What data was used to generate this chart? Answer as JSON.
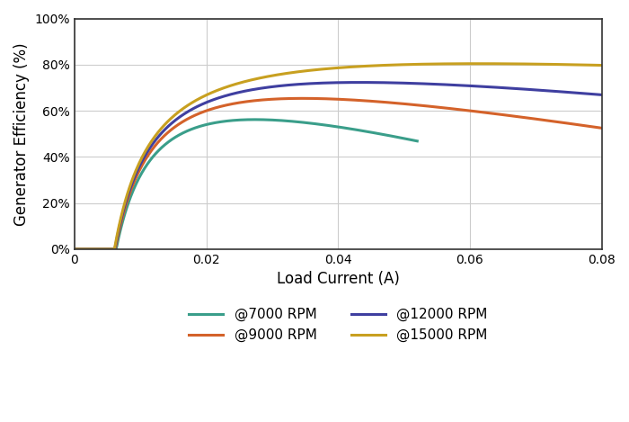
{
  "xlabel": "Load Current (A)",
  "ylabel": "Generator Efficiency (%)",
  "xlim": [
    0,
    0.08
  ],
  "ylim": [
    0,
    1.0
  ],
  "xticks": [
    0,
    0.02,
    0.04,
    0.06,
    0.08
  ],
  "yticks": [
    0,
    0.2,
    0.4,
    0.6,
    0.8,
    1.0
  ],
  "series": [
    {
      "label": "@7000 RPM",
      "color": "#3a9e8a",
      "emf": 1.0,
      "R": 8.0,
      "C": 0.006,
      "scale": 1.0,
      "i_max": 0.052
    },
    {
      "label": "@9000 RPM",
      "color": "#d4622a",
      "emf": 1.0,
      "R": 5.0,
      "C": 0.006,
      "scale": 1.0,
      "i_max": 0.08
    },
    {
      "label": "@12000 RPM",
      "color": "#3f3fa0",
      "emf": 1.0,
      "R": 3.2,
      "C": 0.006,
      "scale": 1.0,
      "i_max": 0.08
    },
    {
      "label": "@15000 RPM",
      "color": "#c8a020",
      "emf": 1.0,
      "R": 1.6,
      "C": 0.006,
      "scale": 1.0,
      "i_max": 0.08
    }
  ],
  "background_color": "#ffffff",
  "grid_color": "#cccccc",
  "linewidth": 2.2,
  "legend_ncol": 2,
  "legend_fontsize": 11
}
